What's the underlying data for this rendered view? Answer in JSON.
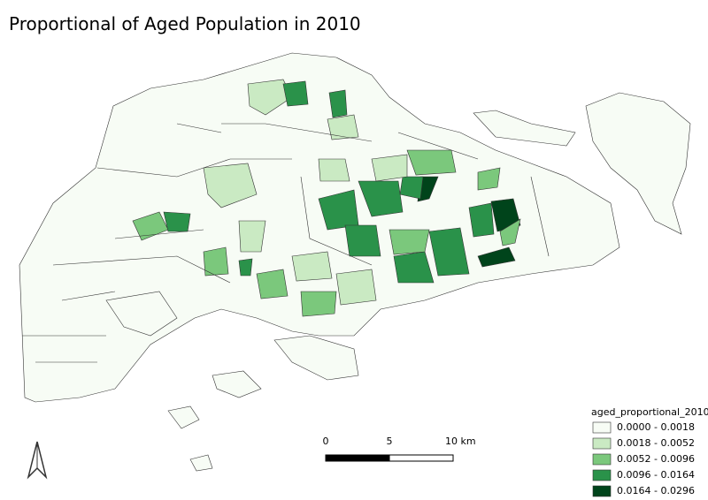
{
  "title": "Proportional of Aged Population in 2010",
  "legend": {
    "title": "aged_proportional_2010",
    "items": [
      {
        "label": "0.0000 - 0.0018",
        "color": "#f7fcf5"
      },
      {
        "label": "0.0018 - 0.0052",
        "color": "#caeac3"
      },
      {
        "label": "0.0052 - 0.0096",
        "color": "#7bc87c"
      },
      {
        "label": "0.0096 - 0.0164",
        "color": "#2a924a"
      },
      {
        "label": "0.0164 - 0.0296",
        "color": "#00441b"
      }
    ]
  },
  "scale_bar": {
    "labels": [
      "0",
      "5",
      "10 km"
    ]
  }
}
